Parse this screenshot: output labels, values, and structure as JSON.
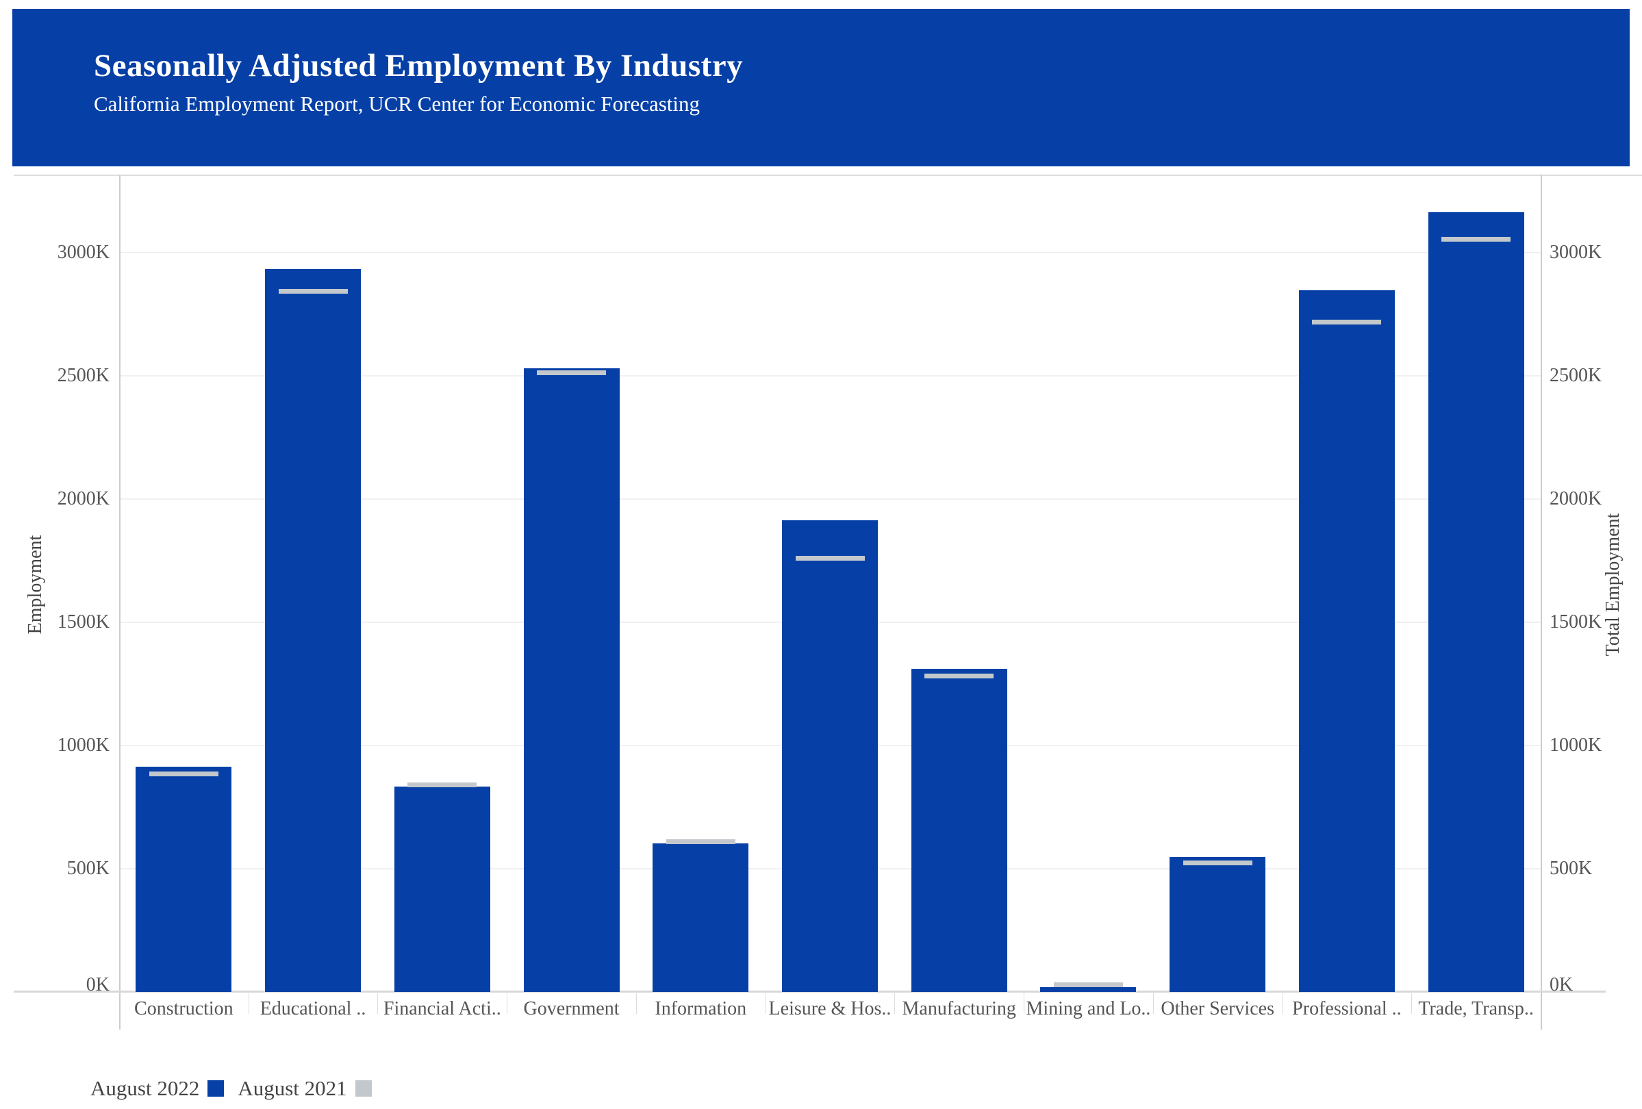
{
  "header": {
    "title": "Seasonally Adjusted Employment By Industry",
    "subtitle": "California Employment Report, UCR Center for Economic Forecasting"
  },
  "colors": {
    "banner_blue": "#0640A6",
    "bar_blue": "#0640A6",
    "reference_gray": "#C3C8CC",
    "gridline": "#F1F1F1",
    "axis_line": "#D8D8D8",
    "tick_text": "#555555",
    "legend_text": "#444444"
  },
  "chart_data": {
    "type": "bar",
    "title": "Seasonally Adjusted Employment By Industry",
    "subtitle": "California Employment Report, UCR Center for Economic Forecasting",
    "categories": [
      "Construction",
      "Educational ..",
      "Financial Acti..",
      "Government",
      "Information",
      "Leisure & Hos..",
      "Manufacturing",
      "Mining and Lo..",
      "Other Services",
      "Professional ..",
      "Trade, Transp.."
    ],
    "series": [
      {
        "name": "August 2022",
        "mark": "bar",
        "color": "#0640A6",
        "values": [
          915,
          2933,
          834,
          2530,
          604,
          1914,
          1311,
          20,
          547,
          2847,
          3165
        ]
      },
      {
        "name": "August 2021",
        "mark": "tick",
        "color": "#C3C8CC",
        "values": [
          884,
          2842,
          840,
          2512,
          610,
          1761,
          1283,
          30,
          525,
          2717,
          3053
        ]
      }
    ],
    "value_unit": "K",
    "xlabel": "",
    "ylabel_left": "Employment",
    "ylabel_right": "Total Employment",
    "yticks": [
      0,
      500,
      1000,
      1500,
      2000,
      2500,
      3000
    ],
    "ytick_labels": [
      "0K",
      "500K",
      "1000K",
      "1500K",
      "2000K",
      "2500K",
      "3000K"
    ],
    "ylim": [
      0,
      3315
    ],
    "grid": "horizontal",
    "legend_position": "bottom-left"
  }
}
